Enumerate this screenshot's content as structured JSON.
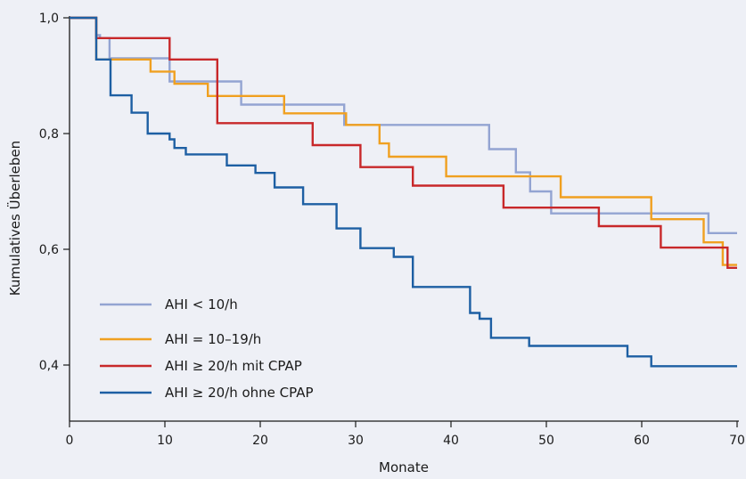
{
  "chart_data": {
    "type": "line",
    "step": true,
    "xlabel": "Monate",
    "ylabel": "Kumulatives Überleben",
    "xlim": [
      0,
      70
    ],
    "ylim": [
      0.3,
      1.0
    ],
    "x_ticks": [
      "0",
      "10",
      "20",
      "30",
      "40",
      "50",
      "60",
      "70"
    ],
    "y_ticks": [
      "0,4",
      "0,6",
      "0,8",
      "1,0"
    ],
    "grid": false,
    "legend_position": "bottom-left",
    "series": [
      {
        "name": "AHI < 10/h",
        "color": "#93a4d2",
        "x": [
          0,
          2.8,
          3.2,
          4.2,
          10.5,
          11.5,
          18,
          27.5,
          28.8,
          44,
          46.8,
          48.3,
          50.5,
          67,
          70
        ],
        "y": [
          1.0,
          0.97,
          0.965,
          0.93,
          0.89,
          0.89,
          0.85,
          0.85,
          0.815,
          0.773,
          0.733,
          0.7,
          0.662,
          0.628,
          0.628
        ]
      },
      {
        "name": "AHI = 10–19/h",
        "color": "#f0a020",
        "x": [
          0,
          2.8,
          8.5,
          11,
          14.5,
          22.5,
          29,
          32.5,
          33.5,
          39.5,
          51.5,
          61,
          66.5,
          68.5,
          70
        ],
        "y": [
          1.0,
          0.928,
          0.907,
          0.886,
          0.865,
          0.835,
          0.815,
          0.783,
          0.76,
          0.726,
          0.69,
          0.652,
          0.612,
          0.573,
          0.573
        ]
      },
      {
        "name": "AHI ≥ 20/h mit CPAP",
        "color": "#c8282a",
        "x": [
          0,
          2.8,
          10.5,
          15.5,
          25.5,
          30.5,
          36,
          45.5,
          55.5,
          62,
          69,
          70
        ],
        "y": [
          1.0,
          0.965,
          0.928,
          0.818,
          0.78,
          0.742,
          0.71,
          0.672,
          0.64,
          0.603,
          0.568,
          0.568
        ]
      },
      {
        "name": "AHI ≥ 20/h ohne CPAP",
        "color": "#1d5fa3",
        "x": [
          0,
          2.8,
          4.3,
          6.5,
          8.2,
          10.5,
          11,
          12.2,
          16.5,
          19.5,
          21.5,
          24.5,
          28,
          30.5,
          34,
          36,
          42,
          43,
          44.2,
          48.2,
          58.5,
          61,
          70
        ],
        "y": [
          1.0,
          0.928,
          0.866,
          0.836,
          0.8,
          0.79,
          0.775,
          0.764,
          0.745,
          0.732,
          0.707,
          0.678,
          0.636,
          0.602,
          0.587,
          0.535,
          0.49,
          0.48,
          0.447,
          0.433,
          0.415,
          0.398,
          0.398
        ]
      }
    ]
  }
}
